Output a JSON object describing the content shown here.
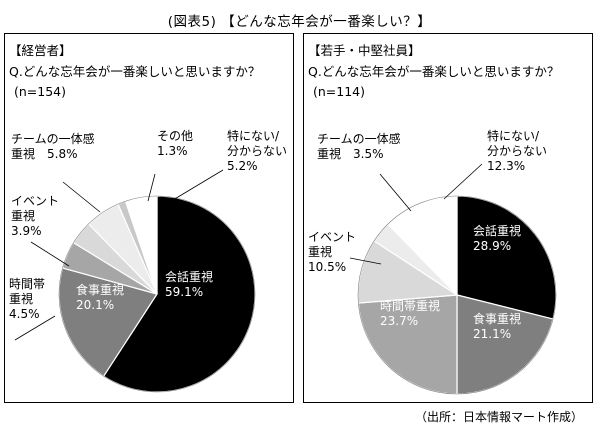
{
  "figure_title": "(図表5)  【どんな忘年会が一番楽しい？】",
  "source_note": "（出所：日本情報マート作成）",
  "panels": [
    {
      "group": "【経営者】",
      "question": "Q.どんな忘年会が一番楽しいと思いますか？",
      "sample": "(n=154)"
    },
    {
      "group": "【若手・中堅社員】",
      "question": "Q.どんな忘年会が一番楽しいと思いますか？",
      "sample": "(n=114)"
    }
  ],
  "chart_data": [
    {
      "type": "pie",
      "start": "12 o'clock, clockwise",
      "slices": [
        {
          "line1": "会話重視",
          "line2": "59.1%",
          "value": 59.1,
          "color": "#000000"
        },
        {
          "line1": "食事重視",
          "line2": "20.1%",
          "value": 20.1,
          "color": "#7f7f7f"
        },
        {
          "line1": "時間帯",
          "line2": "重視",
          "line3": "4.5%",
          "value": 4.5,
          "color": "#a6a6a6"
        },
        {
          "line1": "イベント",
          "line2": "重視",
          "line3": "3.9%",
          "value": 3.9,
          "color": "#d9d9d9"
        },
        {
          "line1": "チームの一体感",
          "line2": "重視　5.8%",
          "value": 5.8,
          "color": "#ececec"
        },
        {
          "line1": "その他",
          "line2": "1.3%",
          "value": 1.3,
          "color": "#c8c8c8"
        },
        {
          "line1": "特にない/",
          "line2": "分からない",
          "line3": "5.2%",
          "value": 5.2,
          "color": "#ffffff"
        }
      ]
    },
    {
      "type": "pie",
      "start": "12 o'clock, clockwise",
      "slices": [
        {
          "line1": "会話重視",
          "line2": "28.9%",
          "value": 28.9,
          "color": "#000000"
        },
        {
          "line1": "食事重視",
          "line2": "21.1%",
          "value": 21.1,
          "color": "#7f7f7f"
        },
        {
          "line1": "時間帯重視",
          "line2": "23.7%",
          "value": 23.7,
          "color": "#a6a6a6"
        },
        {
          "line1": "イベント",
          "line2": "重視",
          "line3": "10.5%",
          "value": 10.5,
          "color": "#d9d9d9"
        },
        {
          "line1": "チームの一体感",
          "line2": "重視　3.5%",
          "value": 3.5,
          "color": "#ececec"
        },
        {
          "line1": "特にない/",
          "line2": "分からない",
          "line3": "12.3%",
          "value": 12.3,
          "color": "#ffffff"
        }
      ]
    }
  ]
}
